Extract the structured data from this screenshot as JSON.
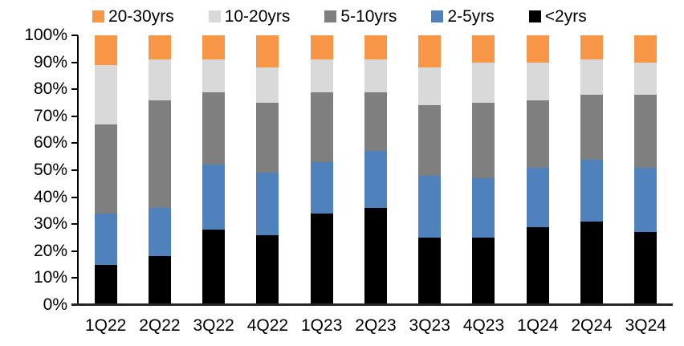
{
  "chart_data": {
    "type": "bar",
    "subtype": "stacked-100-percent",
    "title": "",
    "xlabel": "",
    "ylabel": "",
    "categories": [
      "1Q22",
      "2Q22",
      "3Q22",
      "4Q22",
      "1Q23",
      "2Q23",
      "3Q23",
      "4Q23",
      "1Q24",
      "2Q24",
      "3Q24"
    ],
    "series": [
      {
        "name": "<2yrs",
        "color": "#000000",
        "values": [
          15,
          18,
          28,
          26,
          34,
          36,
          25,
          25,
          29,
          31,
          27
        ]
      },
      {
        "name": "2-5yrs",
        "color": "#4F81BD",
        "values": [
          19,
          18,
          24,
          23,
          19,
          21,
          23,
          22,
          22,
          23,
          24
        ]
      },
      {
        "name": "5-10yrs",
        "color": "#7F7F7F",
        "values": [
          33,
          40,
          27,
          26,
          26,
          22,
          26,
          28,
          25,
          24,
          27
        ]
      },
      {
        "name": "10-20yrs",
        "color": "#D9D9D9",
        "values": [
          22,
          15,
          12,
          13,
          12,
          12,
          14,
          15,
          14,
          13,
          12
        ]
      },
      {
        "name": "20-30yrs",
        "color": "#F79646",
        "values": [
          11,
          9,
          9,
          12,
          9,
          9,
          12,
          10,
          10,
          9,
          10
        ]
      }
    ],
    "legend_order": [
      "20-30yrs",
      "10-20yrs",
      "5-10yrs",
      "2-5yrs",
      "<2yrs"
    ],
    "legend_position": "top",
    "y_axis": {
      "min": 0,
      "max": 100,
      "step": 10,
      "tick_labels": [
        "0%",
        "10%",
        "20%",
        "30%",
        "40%",
        "50%",
        "60%",
        "70%",
        "80%",
        "90%",
        "100%"
      ]
    },
    "grid": "off",
    "colors": {
      "axis": "#000000",
      "text": "#000000",
      "background": "#FFFFFF"
    }
  }
}
